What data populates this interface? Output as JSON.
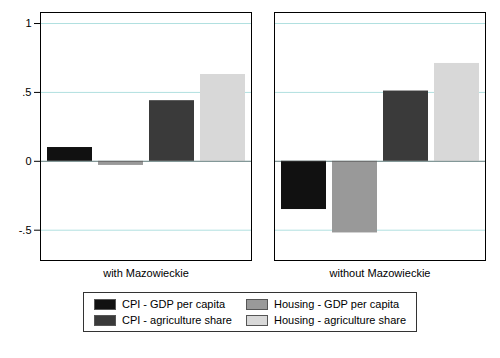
{
  "chart_data": {
    "type": "bar",
    "categories": [
      "with Mazowieckie",
      "without Mazowieckie"
    ],
    "series": [
      {
        "name": "CPI - GDP per capita",
        "color": "#111111",
        "values": [
          0.1,
          -0.35
        ]
      },
      {
        "name": "Housing - GDP per capita",
        "color": "#999999",
        "values": [
          -0.03,
          -0.52
        ]
      },
      {
        "name": "CPI - agriculture share",
        "color": "#3a3a3a",
        "values": [
          0.44,
          0.51
        ]
      },
      {
        "name": "Housing - agriculture share",
        "color": "#d8d8d8",
        "values": [
          0.63,
          0.71
        ]
      }
    ],
    "ylim": [
      -0.72,
      1.08
    ],
    "yticks": [
      {
        "value": -0.5,
        "label": "-.5"
      },
      0,
      {
        "value": 0.5,
        "label": ".5"
      },
      1
    ],
    "grid": true,
    "legend": "bottom"
  }
}
